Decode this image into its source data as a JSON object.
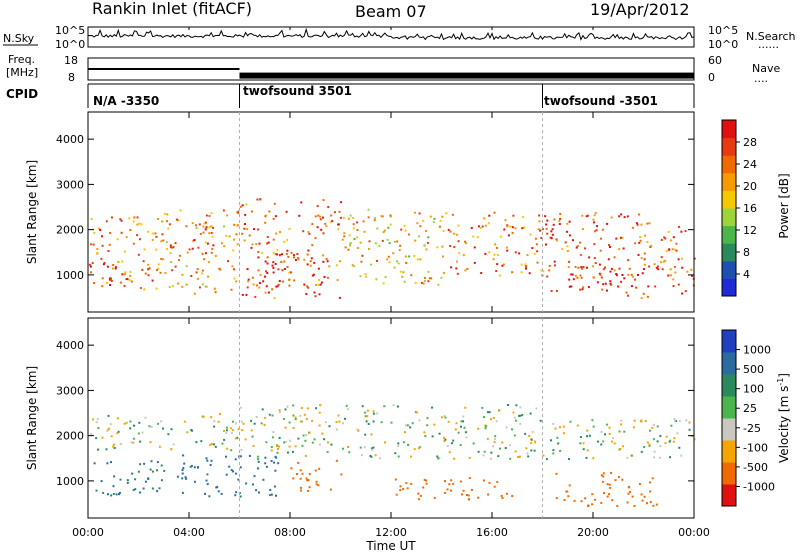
{
  "header": {
    "station": "Rankin Inlet (fitACF)",
    "beam": "Beam 07",
    "date": "19/Apr/2012"
  },
  "nsky_panel": {
    "left_label": "N.Sky",
    "right_label": "N.Search",
    "right_label_marker": "......",
    "left_ticks": [
      "10^5",
      "10^0"
    ],
    "right_ticks": [
      "10^5",
      "10^0"
    ]
  },
  "freq_panel": {
    "left_label_line1": "Freq.",
    "left_label_line2": "[MHz]",
    "right_label": "Nave",
    "right_label_marker": "....",
    "left_ticks": [
      "18",
      "8"
    ],
    "right_ticks": [
      "60",
      "0"
    ]
  },
  "cpid_panel": {
    "label": "CPID",
    "segments": [
      {
        "text": "N/A -3350",
        "start_hour": 0
      },
      {
        "text": "twofsound 3501",
        "start_hour": 6
      },
      {
        "text": "twofsound -3501",
        "start_hour": 18
      }
    ]
  },
  "x_axis": {
    "label": "Time UT",
    "ticks": [
      "00:00",
      "04:00",
      "08:00",
      "12:00",
      "16:00",
      "20:00",
      "00:00"
    ],
    "range_hours": [
      0,
      24
    ]
  },
  "y_axis": {
    "label": "Slant Range [km]",
    "ticks": [
      "1000",
      "2000",
      "3000",
      "4000"
    ],
    "range_km": [
      180,
      4600
    ]
  },
  "power_colorbar": {
    "label": "Power [dB]",
    "ticks": [
      "4",
      "8",
      "12",
      "16",
      "20",
      "24",
      "28"
    ],
    "colors": [
      "#1f2bd6",
      "#1f4fb0",
      "#2a8a5e",
      "#4ab54a",
      "#9cd43a",
      "#f5c800",
      "#f59a00",
      "#f06a00",
      "#e83a10",
      "#e01010"
    ]
  },
  "velocity_colorbar": {
    "label_main": "Velocity  [m s",
    "label_exp": "-1",
    "label_end": "]",
    "ticks": [
      "1000",
      "500",
      "100",
      "25",
      "-25",
      "-100",
      "-500",
      "-1000"
    ],
    "colors": [
      "#2040c0",
      "#2a6ca0",
      "#2a8a5e",
      "#4ab54a",
      "#c8c8c0",
      "#f5a500",
      "#f06a00",
      "#e01010"
    ]
  },
  "chart_data": {
    "type": "heatmap",
    "title": "Rankin Inlet (fitACF)  Beam 07  19/Apr/2012",
    "xlabel": "Time UT",
    "ylabel": "Slant Range [km]",
    "x_range_hours": [
      0,
      24
    ],
    "y_range_km": [
      180,
      4600
    ],
    "power_db_range": [
      0,
      30
    ],
    "velocity_range_ms": [
      -1000,
      1000
    ],
    "power_regions": [
      {
        "t0": 0.0,
        "t1": 3.0,
        "r0": 700,
        "r1": 2400,
        "db": 22
      },
      {
        "t0": 0.5,
        "t1": 2.5,
        "r0": 900,
        "r1": 1300,
        "db": 28
      },
      {
        "t0": 3.0,
        "t1": 6.0,
        "r0": 600,
        "r1": 2500,
        "db": 20
      },
      {
        "t0": 4.0,
        "t1": 5.0,
        "r0": 1500,
        "r1": 2200,
        "db": 28
      },
      {
        "t0": 6.0,
        "t1": 10.0,
        "r0": 500,
        "r1": 2700,
        "db": 24
      },
      {
        "t0": 7.0,
        "t1": 9.0,
        "r0": 800,
        "r1": 1500,
        "db": 28
      },
      {
        "t0": 10.0,
        "t1": 14.0,
        "r0": 800,
        "r1": 2500,
        "db": 18
      },
      {
        "t0": 14.0,
        "t1": 18.0,
        "r0": 1000,
        "r1": 2400,
        "db": 22
      },
      {
        "t0": 18.0,
        "t1": 22.0,
        "r0": 500,
        "r1": 2400,
        "db": 24
      },
      {
        "t0": 19.0,
        "t1": 21.5,
        "r0": 700,
        "r1": 1200,
        "db": 28
      },
      {
        "t0": 22.0,
        "t1": 24.0,
        "r0": 500,
        "r1": 2200,
        "db": 24
      }
    ],
    "velocity_regions": [
      {
        "t0": 0.0,
        "t1": 6.0,
        "r0": 1700,
        "r1": 2500,
        "v": 0
      },
      {
        "t0": 0.0,
        "t1": 3.0,
        "r0": 700,
        "r1": 1500,
        "v": 100
      },
      {
        "t0": 3.5,
        "t1": 7.5,
        "r0": 600,
        "r1": 1600,
        "v": 150
      },
      {
        "t0": 6.0,
        "t1": 18.0,
        "r0": 1500,
        "r1": 2700,
        "v": 0
      },
      {
        "t0": 8.0,
        "t1": 10.0,
        "r0": 800,
        "r1": 1500,
        "v": -300
      },
      {
        "t0": 12.0,
        "t1": 17.0,
        "r0": 600,
        "r1": 1100,
        "v": -200
      },
      {
        "t0": 18.0,
        "t1": 24.0,
        "r0": 1500,
        "r1": 2400,
        "v": 0
      },
      {
        "t0": 18.5,
        "t1": 22.5,
        "r0": 450,
        "r1": 1200,
        "v": -300
      }
    ],
    "frequency_mhz": {
      "t0_t6": 13,
      "t6_t24": 10
    },
    "cpid_changes_hours": [
      6,
      18
    ],
    "grid": false,
    "legend": "right"
  }
}
